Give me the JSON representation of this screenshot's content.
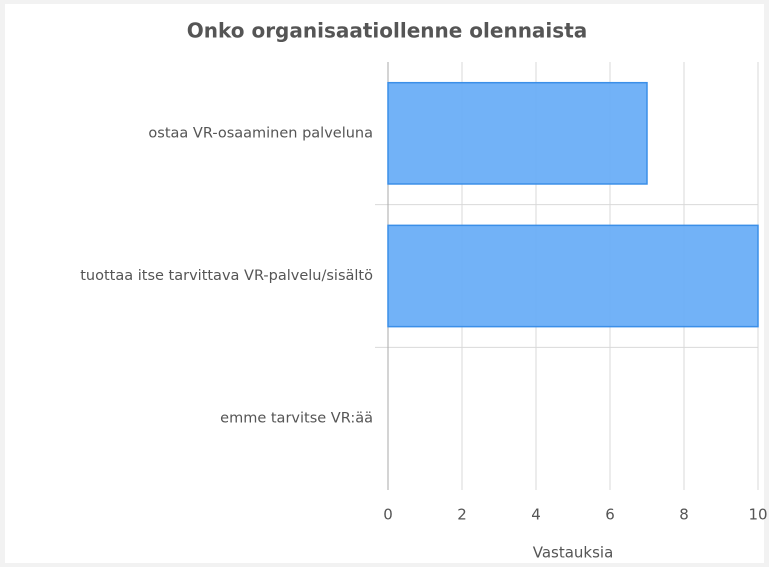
{
  "chart_data": {
    "type": "bar",
    "orientation": "horizontal",
    "title": "Onko organisaatiollenne olennaista",
    "categories": [
      "ostaa VR-osaaminen palveluna",
      "tuottaa itse tarvittava VR-palvelu/sisältö",
      "emme tarvitse VR:ää"
    ],
    "values": [
      7,
      10,
      0
    ],
    "color": "#6aaef7",
    "xlabel": "Vastauksia",
    "xlim": [
      0,
      10
    ],
    "xticks": [
      0,
      2,
      4,
      6,
      8,
      10
    ],
    "grid": true
  }
}
